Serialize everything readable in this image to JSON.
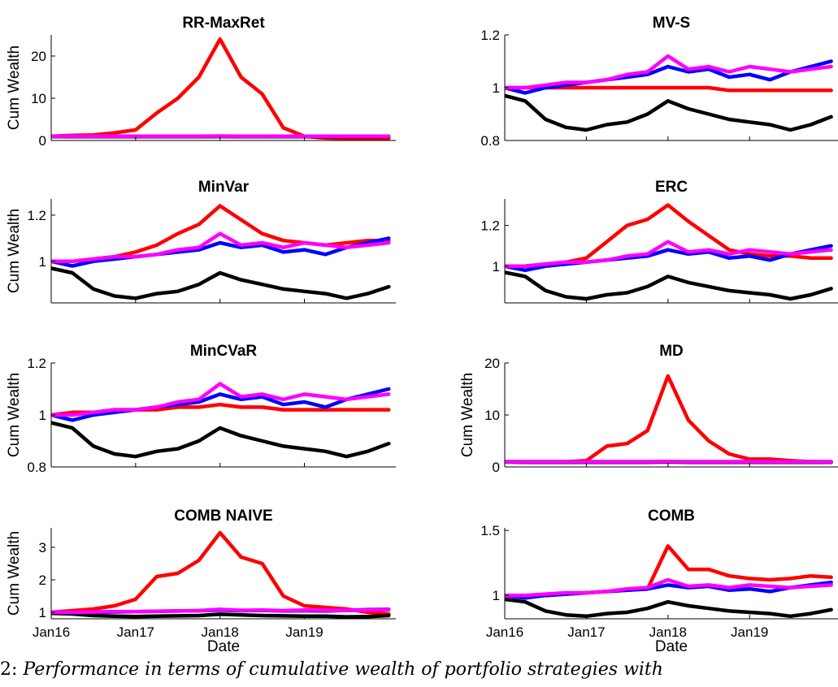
{
  "figure": {
    "xlabel": "Date",
    "ylabel": "Cum Wealth",
    "date_ticks": [
      "Jan16",
      "Jan17",
      "Jan18",
      "Jan19"
    ],
    "caption_prefix": "2:",
    "caption_text": "Performance in terms of cumulative wealth of portfolio strategies with"
  },
  "colors": {
    "red": "#ff0000",
    "blue": "#0000ff",
    "black": "#000000",
    "magenta": "#ff00ff"
  },
  "chart_data": [
    {
      "type": "line",
      "title": "RR-MaxRet",
      "ylabel": "Cum Wealth",
      "x": [
        "2016-01",
        "2016-04",
        "2016-07",
        "2016-10",
        "2017-01",
        "2017-04",
        "2017-07",
        "2017-10",
        "2018-01",
        "2018-04",
        "2018-07",
        "2018-10",
        "2019-01",
        "2019-04",
        "2019-07",
        "2019-10",
        "2020-01"
      ],
      "xlim": [
        "2016-01",
        "2020-02"
      ],
      "ylim": [
        0,
        25
      ],
      "yticks": [
        0,
        10,
        20
      ],
      "series": [
        {
          "color": "red",
          "values": [
            1,
            1.2,
            1.3,
            1.8,
            2.5,
            6.5,
            10,
            15,
            24,
            15,
            11,
            3,
            1,
            0.6,
            0.5,
            0.5,
            0.5
          ]
        },
        {
          "color": "blue",
          "values": [
            1,
            1,
            1,
            1,
            1,
            1,
            1,
            1,
            1,
            1,
            1,
            1,
            1,
            1,
            1,
            1,
            1
          ]
        },
        {
          "color": "black",
          "values": [
            0.95,
            0.9,
            0.9,
            0.9,
            0.9,
            0.9,
            0.9,
            0.9,
            0.95,
            0.9,
            0.9,
            0.9,
            0.9,
            0.9,
            0.9,
            0.9,
            0.9
          ]
        },
        {
          "color": "magenta",
          "values": [
            1,
            1,
            1,
            1,
            1,
            1,
            1,
            1,
            1.05,
            1,
            1,
            1,
            1,
            1,
            1,
            1,
            1
          ]
        }
      ]
    },
    {
      "type": "line",
      "title": "MV-S",
      "ylabel": "",
      "x": [
        "2016-01",
        "2016-04",
        "2016-07",
        "2016-10",
        "2017-01",
        "2017-04",
        "2017-07",
        "2017-10",
        "2018-01",
        "2018-04",
        "2018-07",
        "2018-10",
        "2019-01",
        "2019-04",
        "2019-07",
        "2019-10",
        "2020-01"
      ],
      "xlim": [
        "2016-01",
        "2020-02"
      ],
      "ylim": [
        0.8,
        1.2
      ],
      "yticks": [
        0.8,
        1,
        1.2
      ],
      "series": [
        {
          "color": "red",
          "values": [
            1.0,
            1.0,
            1.0,
            1.0,
            1.0,
            1.0,
            1.0,
            1.0,
            1.0,
            1.0,
            1.0,
            0.99,
            0.99,
            0.99,
            0.99,
            0.99,
            0.99
          ]
        },
        {
          "color": "blue",
          "values": [
            1.0,
            0.98,
            1.0,
            1.01,
            1.02,
            1.03,
            1.04,
            1.05,
            1.08,
            1.06,
            1.07,
            1.04,
            1.05,
            1.03,
            1.06,
            1.08,
            1.1
          ]
        },
        {
          "color": "black",
          "values": [
            0.97,
            0.95,
            0.88,
            0.85,
            0.84,
            0.86,
            0.87,
            0.9,
            0.95,
            0.92,
            0.9,
            0.88,
            0.87,
            0.86,
            0.84,
            0.86,
            0.89
          ]
        },
        {
          "color": "magenta",
          "values": [
            1.0,
            1.0,
            1.01,
            1.02,
            1.02,
            1.03,
            1.05,
            1.06,
            1.12,
            1.07,
            1.08,
            1.06,
            1.08,
            1.07,
            1.06,
            1.07,
            1.08
          ]
        }
      ]
    },
    {
      "type": "line",
      "title": "MinVar",
      "ylabel": "Cum Wealth",
      "x": [
        "2016-01",
        "2016-04",
        "2016-07",
        "2016-10",
        "2017-01",
        "2017-04",
        "2017-07",
        "2017-10",
        "2018-01",
        "2018-04",
        "2018-07",
        "2018-10",
        "2019-01",
        "2019-04",
        "2019-07",
        "2019-10",
        "2020-01"
      ],
      "xlim": [
        "2016-01",
        "2020-02"
      ],
      "ylim": [
        0.82,
        1.27
      ],
      "yticks": [
        1,
        1.2
      ],
      "series": [
        {
          "color": "red",
          "values": [
            1.0,
            1.0,
            1.01,
            1.02,
            1.04,
            1.07,
            1.12,
            1.16,
            1.24,
            1.18,
            1.12,
            1.09,
            1.08,
            1.07,
            1.08,
            1.09,
            1.09
          ]
        },
        {
          "color": "blue",
          "values": [
            1.0,
            0.98,
            1.0,
            1.01,
            1.02,
            1.03,
            1.04,
            1.05,
            1.08,
            1.06,
            1.07,
            1.04,
            1.05,
            1.03,
            1.06,
            1.08,
            1.1
          ]
        },
        {
          "color": "black",
          "values": [
            0.97,
            0.95,
            0.88,
            0.85,
            0.84,
            0.86,
            0.87,
            0.9,
            0.95,
            0.92,
            0.9,
            0.88,
            0.87,
            0.86,
            0.84,
            0.86,
            0.89
          ]
        },
        {
          "color": "magenta",
          "values": [
            1.0,
            1.0,
            1.01,
            1.02,
            1.02,
            1.03,
            1.05,
            1.06,
            1.12,
            1.07,
            1.08,
            1.06,
            1.08,
            1.07,
            1.06,
            1.07,
            1.08
          ]
        }
      ]
    },
    {
      "type": "line",
      "title": "ERC",
      "ylabel": "",
      "x": [
        "2016-01",
        "2016-04",
        "2016-07",
        "2016-10",
        "2017-01",
        "2017-04",
        "2017-07",
        "2017-10",
        "2018-01",
        "2018-04",
        "2018-07",
        "2018-10",
        "2019-01",
        "2019-04",
        "2019-07",
        "2019-10",
        "2020-01"
      ],
      "xlim": [
        "2016-01",
        "2020-02"
      ],
      "ylim": [
        0.82,
        1.33
      ],
      "yticks": [
        1,
        1.2
      ],
      "series": [
        {
          "color": "red",
          "values": [
            1.0,
            1.0,
            1.01,
            1.02,
            1.04,
            1.12,
            1.2,
            1.23,
            1.3,
            1.22,
            1.15,
            1.08,
            1.06,
            1.05,
            1.05,
            1.04,
            1.04
          ]
        },
        {
          "color": "blue",
          "values": [
            1.0,
            0.98,
            1.0,
            1.01,
            1.02,
            1.03,
            1.04,
            1.05,
            1.08,
            1.06,
            1.07,
            1.04,
            1.05,
            1.03,
            1.06,
            1.08,
            1.1
          ]
        },
        {
          "color": "black",
          "values": [
            0.97,
            0.95,
            0.88,
            0.85,
            0.84,
            0.86,
            0.87,
            0.9,
            0.95,
            0.92,
            0.9,
            0.88,
            0.87,
            0.86,
            0.84,
            0.86,
            0.89
          ]
        },
        {
          "color": "magenta",
          "values": [
            1.0,
            1.0,
            1.01,
            1.02,
            1.02,
            1.03,
            1.05,
            1.06,
            1.12,
            1.07,
            1.08,
            1.06,
            1.08,
            1.07,
            1.06,
            1.07,
            1.08
          ]
        }
      ]
    },
    {
      "type": "line",
      "title": "MinCVaR",
      "ylabel": "Cum Wealth",
      "x": [
        "2016-01",
        "2016-04",
        "2016-07",
        "2016-10",
        "2017-01",
        "2017-04",
        "2017-07",
        "2017-10",
        "2018-01",
        "2018-04",
        "2018-07",
        "2018-10",
        "2019-01",
        "2019-04",
        "2019-07",
        "2019-10",
        "2020-01"
      ],
      "xlim": [
        "2016-01",
        "2020-02"
      ],
      "ylim": [
        0.8,
        1.2
      ],
      "yticks": [
        0.8,
        1,
        1.2
      ],
      "series": [
        {
          "color": "red",
          "values": [
            1.0,
            1.01,
            1.01,
            1.02,
            1.02,
            1.02,
            1.03,
            1.03,
            1.04,
            1.03,
            1.03,
            1.02,
            1.02,
            1.02,
            1.02,
            1.02,
            1.02
          ]
        },
        {
          "color": "blue",
          "values": [
            1.0,
            0.98,
            1.0,
            1.01,
            1.02,
            1.03,
            1.04,
            1.05,
            1.08,
            1.06,
            1.07,
            1.04,
            1.05,
            1.03,
            1.06,
            1.08,
            1.1
          ]
        },
        {
          "color": "black",
          "values": [
            0.97,
            0.95,
            0.88,
            0.85,
            0.84,
            0.86,
            0.87,
            0.9,
            0.95,
            0.92,
            0.9,
            0.88,
            0.87,
            0.86,
            0.84,
            0.86,
            0.89
          ]
        },
        {
          "color": "magenta",
          "values": [
            1.0,
            1.0,
            1.01,
            1.02,
            1.02,
            1.03,
            1.05,
            1.06,
            1.12,
            1.07,
            1.08,
            1.06,
            1.08,
            1.07,
            1.06,
            1.07,
            1.08
          ]
        }
      ]
    },
    {
      "type": "line",
      "title": "MD",
      "ylabel": "Cum Wealth",
      "x": [
        "2016-01",
        "2016-04",
        "2016-07",
        "2016-10",
        "2017-01",
        "2017-04",
        "2017-07",
        "2017-10",
        "2018-01",
        "2018-04",
        "2018-07",
        "2018-10",
        "2019-01",
        "2019-04",
        "2019-07",
        "2019-10",
        "2020-01"
      ],
      "xlim": [
        "2016-01",
        "2020-02"
      ],
      "ylim": [
        0,
        20
      ],
      "yticks": [
        0,
        10,
        20
      ],
      "series": [
        {
          "color": "red",
          "values": [
            1,
            1,
            1,
            1,
            1.2,
            4,
            4.5,
            7,
            17.5,
            9,
            5,
            2.5,
            1.5,
            1.5,
            1.2,
            1,
            1
          ]
        },
        {
          "color": "blue",
          "values": [
            1,
            1,
            1,
            1,
            1,
            1,
            1,
            1,
            1,
            1,
            1,
            1,
            1,
            1,
            1,
            1,
            1
          ]
        },
        {
          "color": "black",
          "values": [
            0.95,
            0.9,
            0.9,
            0.9,
            0.9,
            0.9,
            0.9,
            0.9,
            0.95,
            0.9,
            0.9,
            0.9,
            0.9,
            0.9,
            0.9,
            0.9,
            0.9
          ]
        },
        {
          "color": "magenta",
          "values": [
            1,
            1,
            1,
            1,
            1,
            1,
            1,
            1,
            1.05,
            1,
            1,
            1,
            1,
            1,
            1,
            1,
            1
          ]
        }
      ]
    },
    {
      "type": "line",
      "title": "COMB NAIVE",
      "ylabel": "Cum Wealth",
      "x": [
        "2016-01",
        "2016-04",
        "2016-07",
        "2016-10",
        "2017-01",
        "2017-04",
        "2017-07",
        "2017-10",
        "2018-01",
        "2018-04",
        "2018-07",
        "2018-10",
        "2019-01",
        "2019-04",
        "2019-07",
        "2019-10",
        "2020-01"
      ],
      "xlim": [
        "2016-01",
        "2020-02"
      ],
      "ylim": [
        0.8,
        3.6
      ],
      "yticks": [
        1,
        2,
        3
      ],
      "series": [
        {
          "color": "red",
          "values": [
            1.0,
            1.05,
            1.1,
            1.2,
            1.4,
            2.1,
            2.2,
            2.6,
            3.45,
            2.7,
            2.5,
            1.5,
            1.2,
            1.15,
            1.1,
            1.0,
            0.95
          ]
        },
        {
          "color": "blue",
          "values": [
            1.0,
            0.99,
            1.0,
            1.01,
            1.02,
            1.03,
            1.04,
            1.05,
            1.07,
            1.05,
            1.06,
            1.04,
            1.05,
            1.04,
            1.06,
            1.08,
            1.09
          ]
        },
        {
          "color": "black",
          "values": [
            0.97,
            0.95,
            0.9,
            0.88,
            0.87,
            0.88,
            0.89,
            0.9,
            0.94,
            0.92,
            0.9,
            0.89,
            0.88,
            0.88,
            0.86,
            0.87,
            0.9
          ]
        },
        {
          "color": "magenta",
          "values": [
            1.0,
            1.0,
            1.01,
            1.02,
            1.02,
            1.03,
            1.04,
            1.05,
            1.09,
            1.06,
            1.07,
            1.05,
            1.07,
            1.06,
            1.06,
            1.07,
            1.08
          ]
        }
      ]
    },
    {
      "type": "line",
      "title": "COMB",
      "ylabel": "",
      "x": [
        "2016-01",
        "2016-04",
        "2016-07",
        "2016-10",
        "2017-01",
        "2017-04",
        "2017-07",
        "2017-10",
        "2018-01",
        "2018-04",
        "2018-07",
        "2018-10",
        "2019-01",
        "2019-04",
        "2019-07",
        "2019-10",
        "2020-01"
      ],
      "xlim": [
        "2016-01",
        "2020-02"
      ],
      "ylim": [
        0.82,
        1.52
      ],
      "yticks": [
        1,
        1.5
      ],
      "series": [
        {
          "color": "red",
          "values": [
            1.0,
            1.0,
            1.0,
            1.01,
            1.02,
            1.03,
            1.04,
            1.05,
            1.38,
            1.2,
            1.2,
            1.15,
            1.13,
            1.12,
            1.13,
            1.15,
            1.14
          ]
        },
        {
          "color": "blue",
          "values": [
            1.0,
            0.98,
            1.0,
            1.01,
            1.02,
            1.03,
            1.04,
            1.05,
            1.08,
            1.06,
            1.07,
            1.04,
            1.05,
            1.03,
            1.06,
            1.08,
            1.1
          ]
        },
        {
          "color": "black",
          "values": [
            0.97,
            0.95,
            0.88,
            0.85,
            0.84,
            0.86,
            0.87,
            0.9,
            0.95,
            0.92,
            0.9,
            0.88,
            0.87,
            0.86,
            0.84,
            0.86,
            0.89
          ]
        },
        {
          "color": "magenta",
          "values": [
            1.0,
            1.0,
            1.01,
            1.02,
            1.02,
            1.03,
            1.05,
            1.06,
            1.12,
            1.07,
            1.08,
            1.06,
            1.08,
            1.07,
            1.06,
            1.07,
            1.08
          ]
        }
      ]
    }
  ]
}
